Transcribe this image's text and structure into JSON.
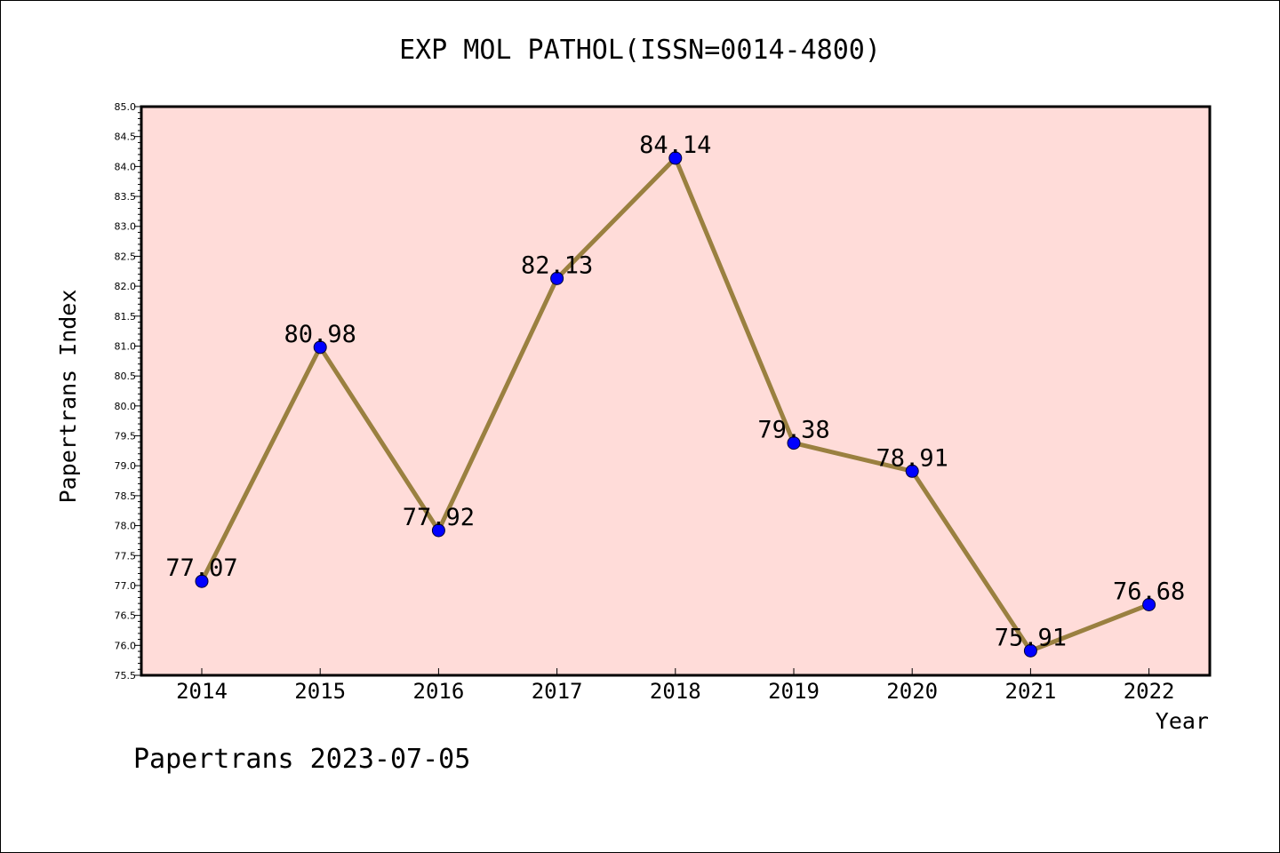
{
  "chart_data": {
    "type": "line",
    "title": "EXP MOL PATHOL(ISSN=0014-4800)",
    "xlabel": "Year",
    "ylabel": "Papertrans Index",
    "categories": [
      "2014",
      "2015",
      "2016",
      "2017",
      "2018",
      "2019",
      "2020",
      "2021",
      "2022"
    ],
    "series": [
      {
        "values": [
          77.07,
          80.98,
          77.92,
          82.13,
          84.14,
          79.38,
          78.91,
          75.91,
          76.68
        ],
        "labels": [
          "77.07",
          "80.98",
          "77.92",
          "82.13",
          "84.14",
          "79.38",
          "78.91",
          "75.91",
          "76.68"
        ]
      }
    ],
    "ylim": [
      75.5,
      85.0
    ],
    "yticks": [
      "75.5",
      "76.0",
      "76.5",
      "77.0",
      "77.5",
      "78.0",
      "78.5",
      "79.0",
      "79.5",
      "80.0",
      "80.5",
      "81.0",
      "81.5",
      "82.0",
      "82.5",
      "83.0",
      "83.5",
      "84.0",
      "84.5",
      "85.0"
    ],
    "colors": {
      "plot_background": "#ffdcd9",
      "line": "#9a8040",
      "marker": "#0000ff"
    },
    "footer": "Papertrans 2023-07-05"
  }
}
